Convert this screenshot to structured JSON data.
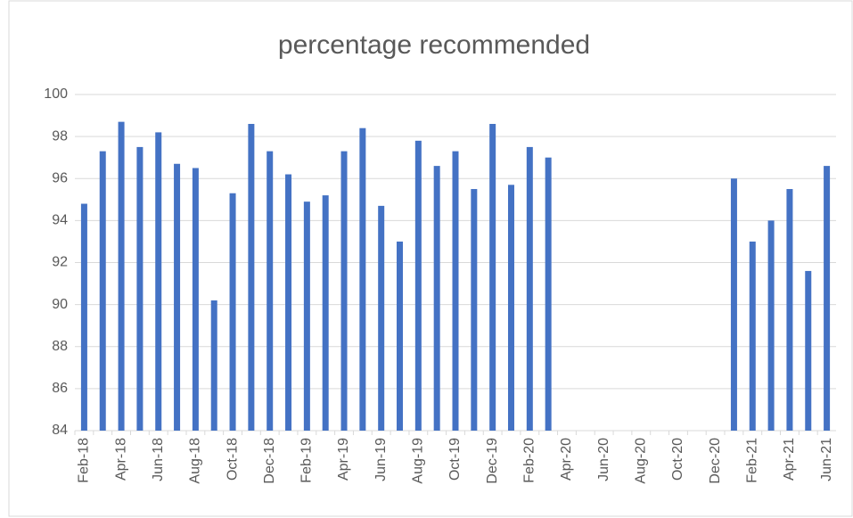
{
  "chart_data": {
    "type": "bar",
    "title": "percentage recommended",
    "categories": [
      "Feb-18",
      null,
      "Apr-18",
      null,
      "Jun-18",
      null,
      "Aug-18",
      null,
      "Oct-18",
      null,
      "Dec-18",
      null,
      "Feb-19",
      null,
      "Apr-19",
      null,
      "Jun-19",
      null,
      "Aug-19",
      null,
      "Oct-19",
      null,
      "Dec-19",
      null,
      "Feb-20",
      null,
      "Apr-20",
      null,
      "Jun-20",
      null,
      "Aug-20",
      null,
      "Oct-20",
      null,
      "Dec-20",
      null,
      "Feb-21",
      null,
      "Apr-21",
      null,
      "Jun-21"
    ],
    "values": [
      94.8,
      97.3,
      98.7,
      97.5,
      98.2,
      96.7,
      96.5,
      90.2,
      95.3,
      98.6,
      97.3,
      96.2,
      94.9,
      95.2,
      97.3,
      98.4,
      94.7,
      93.0,
      97.8,
      96.6,
      97.3,
      95.5,
      98.6,
      95.7,
      97.5,
      97.0,
      null,
      null,
      null,
      null,
      null,
      null,
      null,
      null,
      null,
      96.0,
      93.0,
      94.0,
      95.5,
      91.6,
      96.6
    ],
    "color": "#4472c4",
    "ylim": [
      84,
      100
    ],
    "yticks": [
      84,
      86,
      88,
      90,
      92,
      94,
      96,
      98,
      100
    ],
    "grid": true
  }
}
